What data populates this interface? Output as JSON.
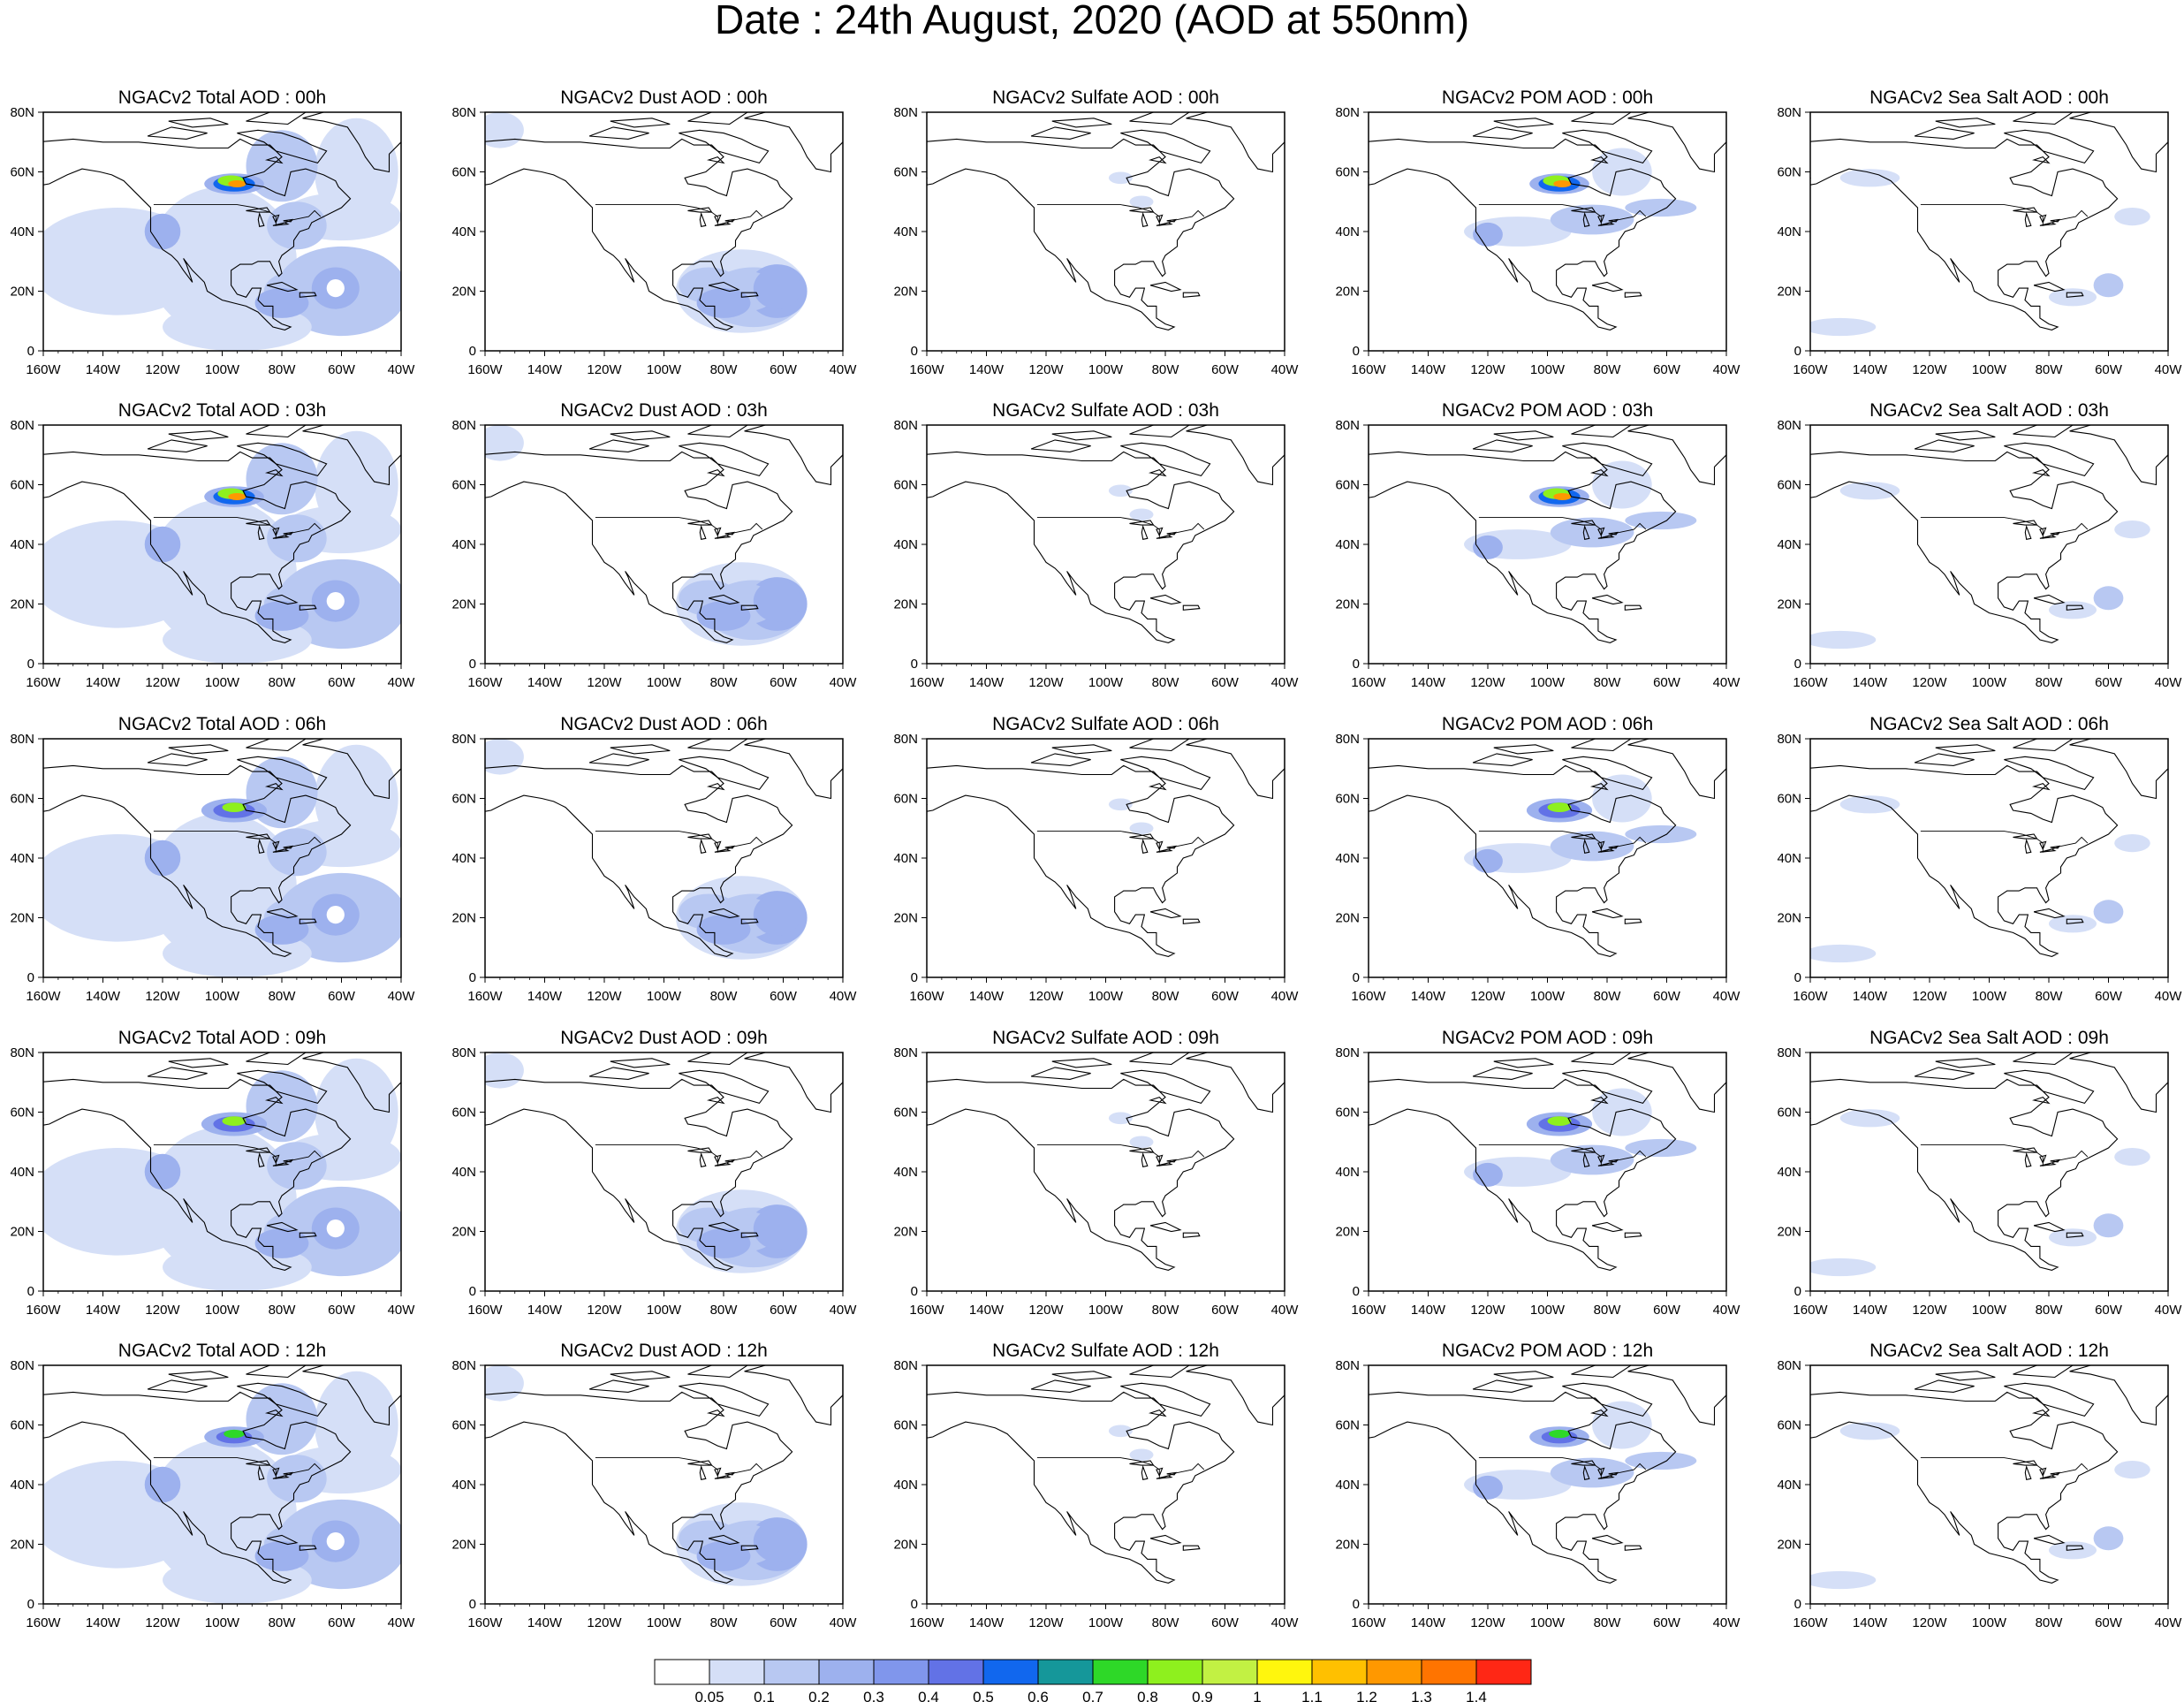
{
  "title": "Date : 24th August, 2020 (AOD at 550nm)",
  "axes": {
    "x_ticks": [
      "160W",
      "140W",
      "120W",
      "100W",
      "80W",
      "60W",
      "40W"
    ],
    "x_values": [
      -160,
      -140,
      -120,
      -100,
      -80,
      -60,
      -40
    ],
    "y_ticks": [
      "0",
      "20N",
      "40N",
      "60N",
      "80N"
    ],
    "y_values": [
      0,
      20,
      40,
      60,
      80
    ],
    "xlim": [
      -160,
      -40
    ],
    "ylim": [
      0,
      80
    ]
  },
  "panels": [
    [
      "NGACv2 Total AOD : 00h",
      "NGACv2 Dust AOD : 00h",
      "NGACv2 Sulfate AOD : 00h",
      "NGACv2 POM AOD : 00h",
      "NGACv2 Sea Salt AOD : 00h"
    ],
    [
      "NGACv2 Total AOD : 03h",
      "NGACv2 Dust AOD : 03h",
      "NGACv2 Sulfate AOD : 03h",
      "NGACv2 POM AOD : 03h",
      "NGACv2 Sea Salt AOD : 03h"
    ],
    [
      "NGACv2 Total AOD : 06h",
      "NGACv2 Dust AOD : 06h",
      "NGACv2 Sulfate AOD : 06h",
      "NGACv2 POM AOD : 06h",
      "NGACv2 Sea Salt AOD : 06h"
    ],
    [
      "NGACv2 Total AOD : 09h",
      "NGACv2 Dust AOD : 09h",
      "NGACv2 Sulfate AOD : 09h",
      "NGACv2 POM AOD : 09h",
      "NGACv2 Sea Salt  AOD : 09h"
    ],
    [
      "NGACv2 Total AOD  : 12h",
      "NGACv2 Dust AOD : 12h",
      "NGACv2 Sulfate AOD : 12h",
      "NGACv2 POM  AOD : 12h",
      "NGACv2 Sea Salt  AOD : 12h"
    ]
  ],
  "colorbar": {
    "labels": [
      "0.05",
      "0.1",
      "0.2",
      "0.3",
      "0.4",
      "0.5",
      "0.6",
      "0.7",
      "0.8",
      "0.9",
      "1",
      "1.1",
      "1.2",
      "1.3",
      "1.4"
    ],
    "colors": [
      "#ffffff",
      "#d5dff7",
      "#b8c8f2",
      "#9db1ee",
      "#8096ec",
      "#6272e6",
      "#1167ee",
      "#15979a",
      "#2ed828",
      "#8ef01e",
      "#c2f143",
      "#fff60d",
      "#ffc000",
      "#ff9800",
      "#ff7400",
      "#ff2715"
    ]
  }
}
